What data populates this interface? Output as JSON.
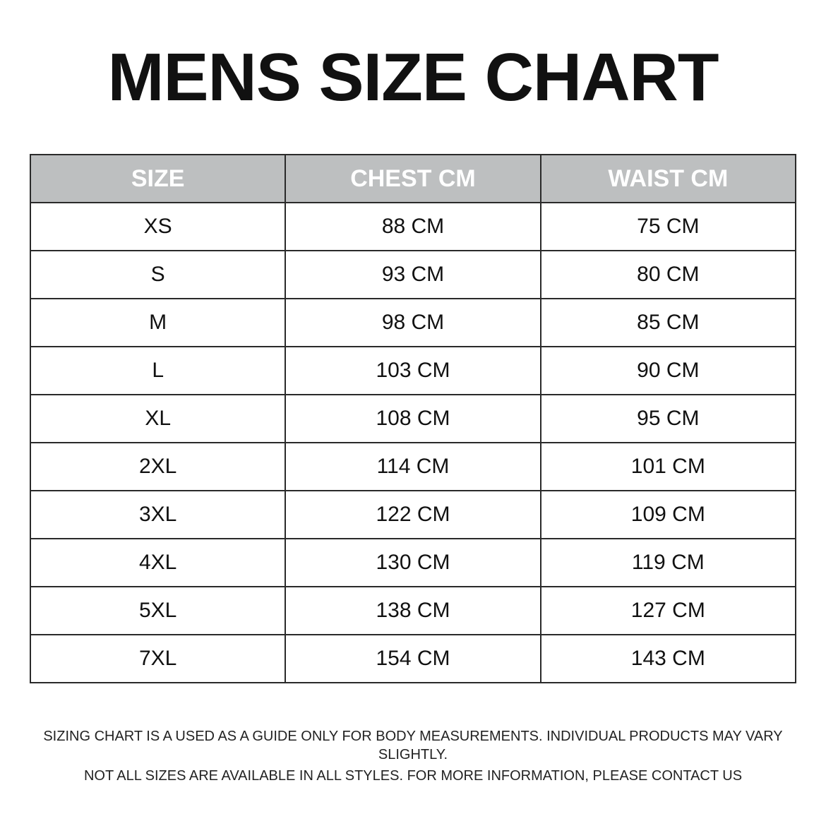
{
  "title": "MENS SIZE CHART",
  "table": {
    "headers": [
      "SIZE",
      "CHEST CM",
      "WAIST CM"
    ],
    "header_bg": "#bdbfc0",
    "rows": [
      [
        "XS",
        "88 CM",
        "75 CM"
      ],
      [
        "S",
        "93 CM",
        "80 CM"
      ],
      [
        "M",
        "98 CM",
        "85 CM"
      ],
      [
        "L",
        "103 CM",
        "90 CM"
      ],
      [
        "XL",
        "108 CM",
        "95 CM"
      ],
      [
        "2XL",
        "114 CM",
        "101 CM"
      ],
      [
        "3XL",
        "122 CM",
        "109 CM"
      ],
      [
        "4XL",
        "130 CM",
        "119 CM"
      ],
      [
        "5XL",
        "138 CM",
        "127 CM"
      ],
      [
        "7XL",
        "154 CM",
        "143 CM"
      ]
    ]
  },
  "footer": {
    "line1": "SIZING CHART IS A USED AS A GUIDE ONLY FOR BODY MEASUREMENTS. INDIVIDUAL PRODUCTS MAY VARY SLIGHTLY.",
    "line2": "NOT ALL SIZES ARE AVAILABLE IN ALL STYLES. FOR MORE INFORMATION, PLEASE CONTACT US"
  }
}
